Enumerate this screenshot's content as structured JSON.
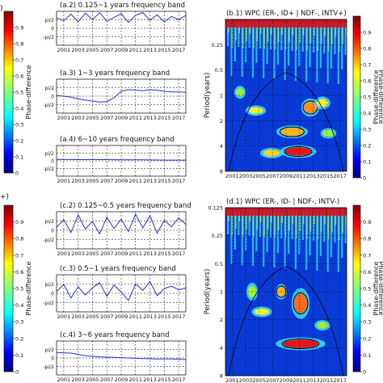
{
  "figure": {
    "top_left_cut": ")",
    "mid_left_cut": "+)"
  },
  "colorbar": {
    "ticks": [
      "0.9",
      "0.8",
      "0.7",
      "0.6",
      "0.5",
      "0.4",
      "0.3",
      "0.2",
      "0.1",
      "0"
    ],
    "label": "Phase-difference"
  },
  "chart_data": [
    {
      "id": "a2",
      "type": "line",
      "title": "(a.2)  0.125~1 years frequency band",
      "x_ticks": [
        "2001",
        "2003",
        "2005",
        "2007",
        "2009",
        "2011",
        "2013",
        "2015",
        "2017"
      ],
      "y_ticks": [
        "pi/2",
        "0",
        "-pi/2"
      ],
      "xlim": [
        2000,
        2018
      ],
      "ylim": [
        -3.1416,
        3.1416
      ],
      "series": [
        {
          "x": [
            2000,
            2001,
            2002,
            2003,
            2004,
            2005,
            2006,
            2007,
            2008,
            2009,
            2010,
            2011,
            2012,
            2013,
            2014,
            2015,
            2016,
            2017,
            2018
          ],
          "y": [
            1.9,
            1.4,
            2.6,
            1.2,
            2.8,
            1.6,
            2.9,
            1.3,
            2.0,
            2.7,
            1.1,
            2.4,
            2.9,
            1.5,
            2.5,
            1.2,
            2.2,
            1.6,
            2.4
          ]
        }
      ]
    },
    {
      "id": "a3",
      "type": "line",
      "title": "(a.3)  1~3 years frequency band",
      "x_ticks": [
        "2001",
        "2003",
        "2005",
        "2007",
        "2009",
        "2011",
        "2013",
        "2015",
        "2017"
      ],
      "y_ticks": [
        "pi/2",
        "0",
        "-pi/2"
      ],
      "xlim": [
        2000,
        2018
      ],
      "ylim": [
        -3.1416,
        3.1416
      ],
      "series": [
        {
          "x": [
            2000,
            2001,
            2002,
            2003,
            2004,
            2005,
            2006,
            2007,
            2008,
            2009,
            2010,
            2011,
            2012,
            2013,
            2014,
            2015,
            2016,
            2017,
            2018
          ],
          "y": [
            0.1,
            0.0,
            -0.2,
            -0.5,
            -0.7,
            -0.9,
            -1.1,
            -1.0,
            -0.3,
            0.9,
            1.2,
            1.1,
            1.0,
            1.2,
            1.1,
            0.9,
            0.8,
            0.8,
            0.7
          ]
        }
      ]
    },
    {
      "id": "a4",
      "type": "line",
      "title": "(a.4)  6~10 years frequency band",
      "x_ticks": [
        "2001",
        "2003",
        "2005",
        "2007",
        "2009",
        "2011",
        "2013",
        "2015",
        "2017"
      ],
      "y_ticks": [
        "pi/2",
        "0",
        "-pi/2"
      ],
      "xlim": [
        2000,
        2018
      ],
      "ylim": [
        -3.1416,
        3.1416
      ],
      "series": [
        {
          "x": [
            2000,
            2003,
            2006,
            2009,
            2012,
            2015,
            2018
          ],
          "y": [
            0.3,
            0.25,
            0.25,
            0.2,
            0.2,
            0.15,
            0.15
          ]
        }
      ]
    },
    {
      "id": "c2",
      "type": "line",
      "title": "(c.2)  0.125~0.5 years frequency band",
      "x_ticks": [
        "2001",
        "2003",
        "2005",
        "2007",
        "2009",
        "2011",
        "2013",
        "2015",
        "2017"
      ],
      "y_ticks": [
        "pi/2",
        "0",
        "-pi/2"
      ],
      "xlim": [
        2000,
        2018
      ],
      "ylim": [
        -3.1416,
        3.1416
      ],
      "series": [
        {
          "x": [
            2000,
            2001,
            2002,
            2003,
            2004,
            2005,
            2006,
            2007,
            2008,
            2009,
            2010,
            2011,
            2012,
            2013,
            2014,
            2015,
            2016,
            2017,
            2018
          ],
          "y": [
            0.5,
            1.8,
            -0.4,
            2.6,
            0.2,
            1.5,
            -0.6,
            2.2,
            0.3,
            1.9,
            -0.2,
            2.7,
            0.4,
            2.5,
            -0.5,
            1.7,
            0.6,
            2.1,
            1.0
          ]
        }
      ]
    },
    {
      "id": "c3",
      "type": "line",
      "title": "(c.3)  0.5~1 years frequency band",
      "x_ticks": [
        "2001",
        "2003",
        "2005",
        "2007",
        "2009",
        "2011",
        "2013",
        "2015",
        "2017"
      ],
      "y_ticks": [
        "pi/2",
        "0",
        "-pi/2"
      ],
      "xlim": [
        2000,
        2018
      ],
      "ylim": [
        -3.1416,
        3.1416
      ],
      "series": [
        {
          "x": [
            2000,
            2001,
            2002,
            2003,
            2004,
            2005,
            2006,
            2007,
            2008,
            2009,
            2010,
            2011,
            2012,
            2013,
            2014,
            2015,
            2016,
            2017,
            2018
          ],
          "y": [
            0.3,
            1.5,
            -0.8,
            1.1,
            -0.3,
            0.9,
            1.8,
            -0.5,
            1.4,
            0.2,
            -1.2,
            1.6,
            0.5,
            2.0,
            -0.4,
            0.8,
            1.2,
            0.6,
            0.9
          ]
        }
      ]
    },
    {
      "id": "c4",
      "type": "line",
      "title": "(c.4)  3~6 years frequency band",
      "x_ticks": [
        "2001",
        "2003",
        "2005",
        "2007",
        "2009",
        "2011",
        "2013",
        "2015",
        "2017"
      ],
      "y_ticks": [
        "pi/2",
        "0",
        "-pi/2"
      ],
      "xlim": [
        2000,
        2018
      ],
      "ylim": [
        -3.1416,
        3.1416
      ],
      "series": [
        {
          "x": [
            2000,
            2002,
            2004,
            2006,
            2008,
            2010,
            2012,
            2014,
            2016,
            2018
          ],
          "y": [
            1.0,
            0.9,
            0.4,
            0.2,
            0.1,
            0.0,
            -0.1,
            -0.2,
            -0.2,
            -0.3
          ]
        }
      ]
    },
    {
      "id": "b1",
      "type": "heatmap",
      "title": "(b.1)  WPC (ER-, ID+ | NDF-, INTV+)",
      "ylabel": "Period(years)",
      "x_ticks": [
        "2001",
        "2003",
        "2005",
        "2007",
        "2009",
        "2011",
        "2013",
        "2015",
        "2017"
      ],
      "y_ticks": [
        "0.25",
        "0.5",
        "1",
        "2",
        "4",
        "8"
      ],
      "xlim": [
        2000,
        2018
      ],
      "ylim_log2": [
        -3,
        3
      ]
    },
    {
      "id": "d1",
      "type": "heatmap",
      "title": "(d.1)  WPC (ER-, ID- | NDF-, INTV-)",
      "ylabel": "Period(years)",
      "x_ticks": [
        "2001",
        "2003",
        "2005",
        "2007",
        "2009",
        "2011",
        "2013",
        "2015",
        "2017"
      ],
      "y_ticks": [
        "0.125",
        "0.25",
        "0.5",
        "1",
        "2",
        "4",
        "8"
      ],
      "xlim": [
        2000,
        2018
      ],
      "ylim_log2": [
        -3,
        3
      ]
    }
  ]
}
